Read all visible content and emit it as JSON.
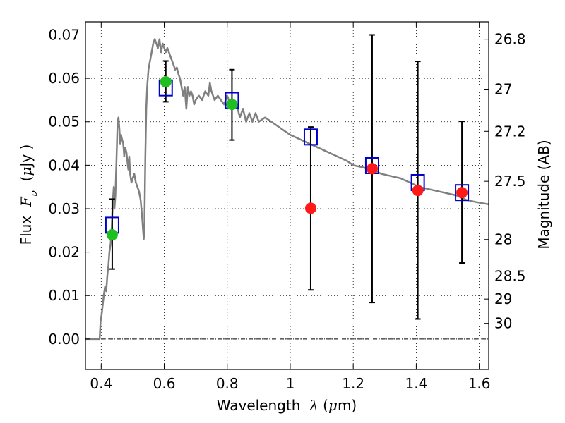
{
  "chart_data": {
    "type": "scatter",
    "xlabel_parts": [
      "Wavelength  ",
      "λ",
      " (",
      "μ",
      "m)"
    ],
    "ylabel_parts": [
      "Flux  ",
      "F",
      "ν",
      "  (",
      "μ",
      "Jy )"
    ],
    "y2label": "Magnitude (AB)",
    "xlim": [
      0.35,
      1.63
    ],
    "ylim": [
      -0.007,
      0.073
    ],
    "grid": true,
    "x_ticks": [
      {
        "value": 0.4,
        "label": "0.4"
      },
      {
        "value": 0.6,
        "label": "0.6"
      },
      {
        "value": 0.8,
        "label": "0.8"
      },
      {
        "value": 1.0,
        "label": "1"
      },
      {
        "value": 1.2,
        "label": "1.2"
      },
      {
        "value": 1.4,
        "label": "1.4"
      },
      {
        "value": 1.6,
        "label": "1.6"
      }
    ],
    "y_ticks": [
      {
        "value": 0.0,
        "label": "0.00"
      },
      {
        "value": 0.01,
        "label": "0.01"
      },
      {
        "value": 0.02,
        "label": "0.02"
      },
      {
        "value": 0.03,
        "label": "0.03"
      },
      {
        "value": 0.04,
        "label": "0.04"
      },
      {
        "value": 0.05,
        "label": "0.05"
      },
      {
        "value": 0.06,
        "label": "0.06"
      },
      {
        "value": 0.07,
        "label": "0.07"
      }
    ],
    "y2_ticks": [
      {
        "flux": 0.069,
        "label": "26.8"
      },
      {
        "flux": 0.0575,
        "label": "27"
      },
      {
        "flux": 0.0478,
        "label": "27.2"
      },
      {
        "flux": 0.0363,
        "label": "27.5"
      },
      {
        "flux": 0.0229,
        "label": "28"
      },
      {
        "flux": 0.0145,
        "label": "28.5"
      },
      {
        "flux": 0.0092,
        "label": "29"
      },
      {
        "flux": 0.0036,
        "label": "30"
      }
    ],
    "zero_line": 0.0,
    "model_sed": {
      "color": "#808080",
      "points": [
        [
          0.35,
          0.0
        ],
        [
          0.395,
          0.0
        ],
        [
          0.398,
          0.004
        ],
        [
          0.402,
          0.006
        ],
        [
          0.408,
          0.01
        ],
        [
          0.412,
          0.012
        ],
        [
          0.416,
          0.011
        ],
        [
          0.42,
          0.015
        ],
        [
          0.423,
          0.017
        ],
        [
          0.426,
          0.02
        ],
        [
          0.43,
          0.022
        ],
        [
          0.433,
          0.025
        ],
        [
          0.436,
          0.03
        ],
        [
          0.438,
          0.033
        ],
        [
          0.44,
          0.035
        ],
        [
          0.442,
          0.03
        ],
        [
          0.445,
          0.033
        ],
        [
          0.448,
          0.04
        ],
        [
          0.45,
          0.045
        ],
        [
          0.452,
          0.05
        ],
        [
          0.455,
          0.051
        ],
        [
          0.458,
          0.048
        ],
        [
          0.46,
          0.045
        ],
        [
          0.463,
          0.047
        ],
        [
          0.466,
          0.046
        ],
        [
          0.47,
          0.045
        ],
        [
          0.473,
          0.042
        ],
        [
          0.476,
          0.044
        ],
        [
          0.48,
          0.043
        ],
        [
          0.483,
          0.041
        ],
        [
          0.486,
          0.039
        ],
        [
          0.489,
          0.042
        ],
        [
          0.492,
          0.038
        ],
        [
          0.496,
          0.036
        ],
        [
          0.5,
          0.037
        ],
        [
          0.505,
          0.038
        ],
        [
          0.51,
          0.036
        ],
        [
          0.515,
          0.035
        ],
        [
          0.52,
          0.034
        ],
        [
          0.525,
          0.032
        ],
        [
          0.53,
          0.028
        ],
        [
          0.533,
          0.025
        ],
        [
          0.535,
          0.023
        ],
        [
          0.537,
          0.025
        ],
        [
          0.54,
          0.042
        ],
        [
          0.543,
          0.053
        ],
        [
          0.546,
          0.058
        ],
        [
          0.55,
          0.062
        ],
        [
          0.555,
          0.064
        ],
        [
          0.56,
          0.066
        ],
        [
          0.565,
          0.068
        ],
        [
          0.57,
          0.069
        ],
        [
          0.575,
          0.068
        ],
        [
          0.58,
          0.067
        ],
        [
          0.585,
          0.069
        ],
        [
          0.59,
          0.066
        ],
        [
          0.595,
          0.068
        ],
        [
          0.6,
          0.067
        ],
        [
          0.605,
          0.066
        ],
        [
          0.61,
          0.067
        ],
        [
          0.615,
          0.066
        ],
        [
          0.62,
          0.065
        ],
        [
          0.625,
          0.064
        ],
        [
          0.63,
          0.063
        ],
        [
          0.635,
          0.062
        ],
        [
          0.64,
          0.0625
        ],
        [
          0.645,
          0.061
        ],
        [
          0.65,
          0.06
        ],
        [
          0.655,
          0.058
        ],
        [
          0.66,
          0.056
        ],
        [
          0.665,
          0.058
        ],
        [
          0.67,
          0.053
        ],
        [
          0.675,
          0.058
        ],
        [
          0.68,
          0.056
        ],
        [
          0.685,
          0.057
        ],
        [
          0.69,
          0.056
        ],
        [
          0.695,
          0.054
        ],
        [
          0.7,
          0.055
        ],
        [
          0.71,
          0.056
        ],
        [
          0.72,
          0.055
        ],
        [
          0.73,
          0.057
        ],
        [
          0.74,
          0.056
        ],
        [
          0.745,
          0.059
        ],
        [
          0.75,
          0.057
        ],
        [
          0.76,
          0.055
        ],
        [
          0.77,
          0.056
        ],
        [
          0.78,
          0.055
        ],
        [
          0.79,
          0.054
        ],
        [
          0.8,
          0.056
        ],
        [
          0.81,
          0.054
        ],
        [
          0.82,
          0.053
        ],
        [
          0.83,
          0.054
        ],
        [
          0.84,
          0.051
        ],
        [
          0.85,
          0.053
        ],
        [
          0.86,
          0.05
        ],
        [
          0.87,
          0.052
        ],
        [
          0.88,
          0.05
        ],
        [
          0.89,
          0.052
        ],
        [
          0.9,
          0.05
        ],
        [
          0.92,
          0.051
        ],
        [
          0.94,
          0.05
        ],
        [
          0.96,
          0.049
        ],
        [
          0.98,
          0.048
        ],
        [
          1.0,
          0.047
        ],
        [
          1.03,
          0.046
        ],
        [
          1.06,
          0.045
        ],
        [
          1.09,
          0.044
        ],
        [
          1.12,
          0.043
        ],
        [
          1.15,
          0.042
        ],
        [
          1.18,
          0.041
        ],
        [
          1.2,
          0.04
        ],
        [
          1.23,
          0.0395
        ],
        [
          1.26,
          0.039
        ],
        [
          1.29,
          0.038
        ],
        [
          1.32,
          0.0375
        ],
        [
          1.35,
          0.037
        ],
        [
          1.38,
          0.036
        ],
        [
          1.41,
          0.035
        ],
        [
          1.44,
          0.0345
        ],
        [
          1.47,
          0.034
        ],
        [
          1.5,
          0.0335
        ],
        [
          1.53,
          0.033
        ],
        [
          1.56,
          0.032
        ],
        [
          1.59,
          0.0315
        ],
        [
          1.63,
          0.031
        ]
      ]
    },
    "model_photometry": {
      "color": "#0000cc",
      "points": [
        [
          0.435,
          0.0262
        ],
        [
          0.605,
          0.0578
        ],
        [
          0.815,
          0.0549
        ],
        [
          1.065,
          0.0465
        ],
        [
          1.26,
          0.0399
        ],
        [
          1.405,
          0.036
        ],
        [
          1.545,
          0.0337
        ]
      ]
    },
    "observed": [
      {
        "x": 0.435,
        "y": 0.024,
        "yerr_lo": 0.0161,
        "yerr_hi": 0.0322,
        "color": "#1fbf1f"
      },
      {
        "x": 0.605,
        "y": 0.0592,
        "yerr_lo": 0.0546,
        "yerr_hi": 0.064,
        "color": "#1fbf1f"
      },
      {
        "x": 0.815,
        "y": 0.054,
        "yerr_lo": 0.0458,
        "yerr_hi": 0.062,
        "color": "#1fbf1f"
      },
      {
        "x": 1.065,
        "y": 0.0301,
        "yerr_lo": 0.0113,
        "yerr_hi": 0.0488,
        "color": "#ff1a1a"
      },
      {
        "x": 1.26,
        "y": 0.0392,
        "yerr_lo": 0.0084,
        "yerr_hi": 0.07,
        "color": "#ff1a1a"
      },
      {
        "x": 1.405,
        "y": 0.0342,
        "yerr_lo": 0.0046,
        "yerr_hi": 0.0639,
        "color": "#ff1a1a"
      },
      {
        "x": 1.545,
        "y": 0.0337,
        "yerr_lo": 0.0175,
        "yerr_hi": 0.0501,
        "color": "#ff1a1a"
      }
    ]
  }
}
